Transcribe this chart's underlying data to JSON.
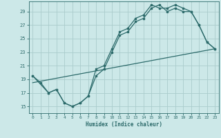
{
  "xlabel": "Humidex (Indice chaleur)",
  "bg_color": "#cce8e8",
  "grid_color": "#aacccc",
  "line_color": "#2d6b6b",
  "xlim": [
    -0.5,
    23.5
  ],
  "ylim": [
    14.0,
    30.5
  ],
  "yticks": [
    15,
    17,
    19,
    21,
    23,
    25,
    27,
    29
  ],
  "xticks": [
    0,
    1,
    2,
    3,
    4,
    5,
    6,
    7,
    8,
    9,
    10,
    11,
    12,
    13,
    14,
    15,
    16,
    17,
    18,
    19,
    20,
    21,
    22,
    23
  ],
  "line1_x": [
    0,
    1,
    2,
    3,
    4,
    5,
    6,
    7,
    8,
    9,
    10,
    11,
    12,
    13,
    14,
    15,
    16,
    17,
    18,
    19,
    20,
    21,
    22,
    23
  ],
  "line1_y": [
    19.5,
    18.5,
    17.0,
    17.5,
    15.5,
    15.0,
    15.5,
    16.5,
    19.5,
    20.5,
    23.0,
    25.5,
    26.0,
    27.5,
    28.0,
    29.5,
    30.0,
    29.0,
    29.5,
    29.0,
    29.0,
    27.0,
    24.5,
    23.5
  ],
  "line2_x": [
    0,
    2,
    3,
    4,
    5,
    6,
    7,
    8,
    9,
    10,
    11,
    12,
    13,
    14,
    15,
    16,
    17,
    18,
    19,
    20,
    21,
    22,
    23
  ],
  "line2_y": [
    19.5,
    17.0,
    17.5,
    15.5,
    15.0,
    15.5,
    16.5,
    20.5,
    21.0,
    23.5,
    26.0,
    26.5,
    28.0,
    28.5,
    30.0,
    29.5,
    29.5,
    30.0,
    29.5,
    29.0,
    27.0,
    24.5,
    23.5
  ],
  "line3_x": [
    0,
    23
  ],
  "line3_y": [
    18.5,
    23.5
  ],
  "marker_size": 2.0,
  "linewidth": 0.9
}
